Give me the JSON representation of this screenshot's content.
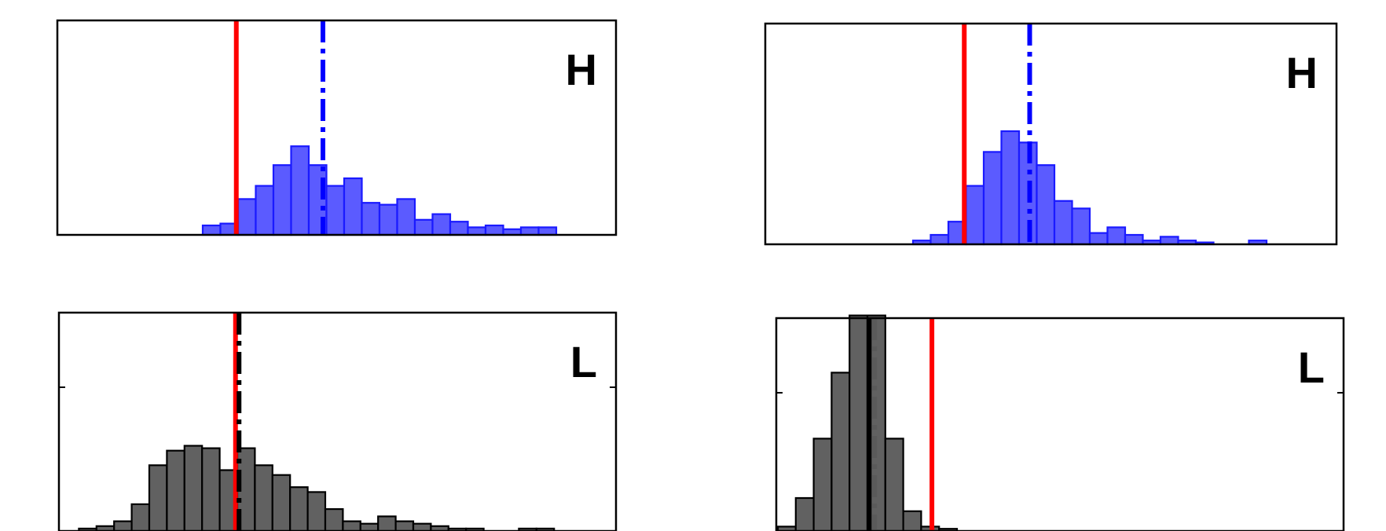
{
  "chart_data": [
    {
      "type": "bar",
      "panel_label": "H",
      "bar_color": "#5b5bff",
      "bar_edge_color": "#1a1aff",
      "bins": 20,
      "values": [
        0.05,
        0.06,
        0.19,
        0.26,
        0.37,
        0.47,
        0.37,
        0.26,
        0.3,
        0.17,
        0.16,
        0.19,
        0.08,
        0.11,
        0.07,
        0.04,
        0.05,
        0.03,
        0.04,
        0.04
      ],
      "bin_start": 8,
      "ylim": [
        0,
        1
      ],
      "reference_lines": [
        {
          "position": 9.9,
          "style": "solid",
          "color": "#ff0000"
        },
        {
          "position": 14.8,
          "style": "dashdot",
          "color": "#0000ff"
        }
      ]
    },
    {
      "type": "bar",
      "panel_label": "H",
      "bar_color": "#5b5bff",
      "bar_edge_color": "#1a1aff",
      "bins": 20,
      "values": [
        0.02,
        0.05,
        0.12,
        0.31,
        0.49,
        0.6,
        0.54,
        0.42,
        0.23,
        0.19,
        0.06,
        0.09,
        0.05,
        0.02,
        0.04,
        0.02,
        0.01,
        0,
        0,
        0.02
      ],
      "bin_start": 8,
      "ylim": [
        0,
        1
      ],
      "reference_lines": [
        {
          "position": 10.9,
          "style": "solid",
          "color": "#ff0000"
        },
        {
          "position": 14.6,
          "style": "dashdot",
          "color": "#0000ff"
        }
      ]
    },
    {
      "type": "bar",
      "panel_label": "L",
      "bar_color": "#616161",
      "bar_edge_color": "#000000",
      "bins": 28,
      "values": [
        0,
        0.01,
        0.02,
        0.04,
        0.11,
        0.27,
        0.33,
        0.35,
        0.34,
        0.25,
        0.34,
        0.27,
        0.23,
        0.18,
        0.16,
        0.09,
        0.04,
        0.03,
        0.06,
        0.04,
        0.03,
        0.02,
        0.01,
        0.01,
        0,
        0,
        0.01,
        0.01
      ],
      "bin_start": 1,
      "ylim": [
        0,
        1
      ],
      "reference_lines": [
        {
          "position": 10.9,
          "style": "solid",
          "color": "#ff0000"
        },
        {
          "position": 11.1,
          "style": "dashdot",
          "color": "#000000"
        }
      ]
    },
    {
      "type": "bar",
      "panel_label": "L",
      "bar_color": "#616161",
      "bar_edge_color": "#000000",
      "bins": 10,
      "values": [
        0.02,
        0.15,
        0.42,
        0.72,
        0.98,
        0.98,
        0.42,
        0.09,
        0.02,
        0.01
      ],
      "bin_start": 1,
      "ylim": [
        0,
        1
      ],
      "reference_lines": [
        {
          "position": 6.1,
          "style": "solid",
          "color": "#000000"
        },
        {
          "position": 6.4,
          "style": "dashdot",
          "color": "#5a5a5a"
        },
        {
          "position": 9.6,
          "style": "solid",
          "color": "#ff0000"
        }
      ]
    }
  ]
}
